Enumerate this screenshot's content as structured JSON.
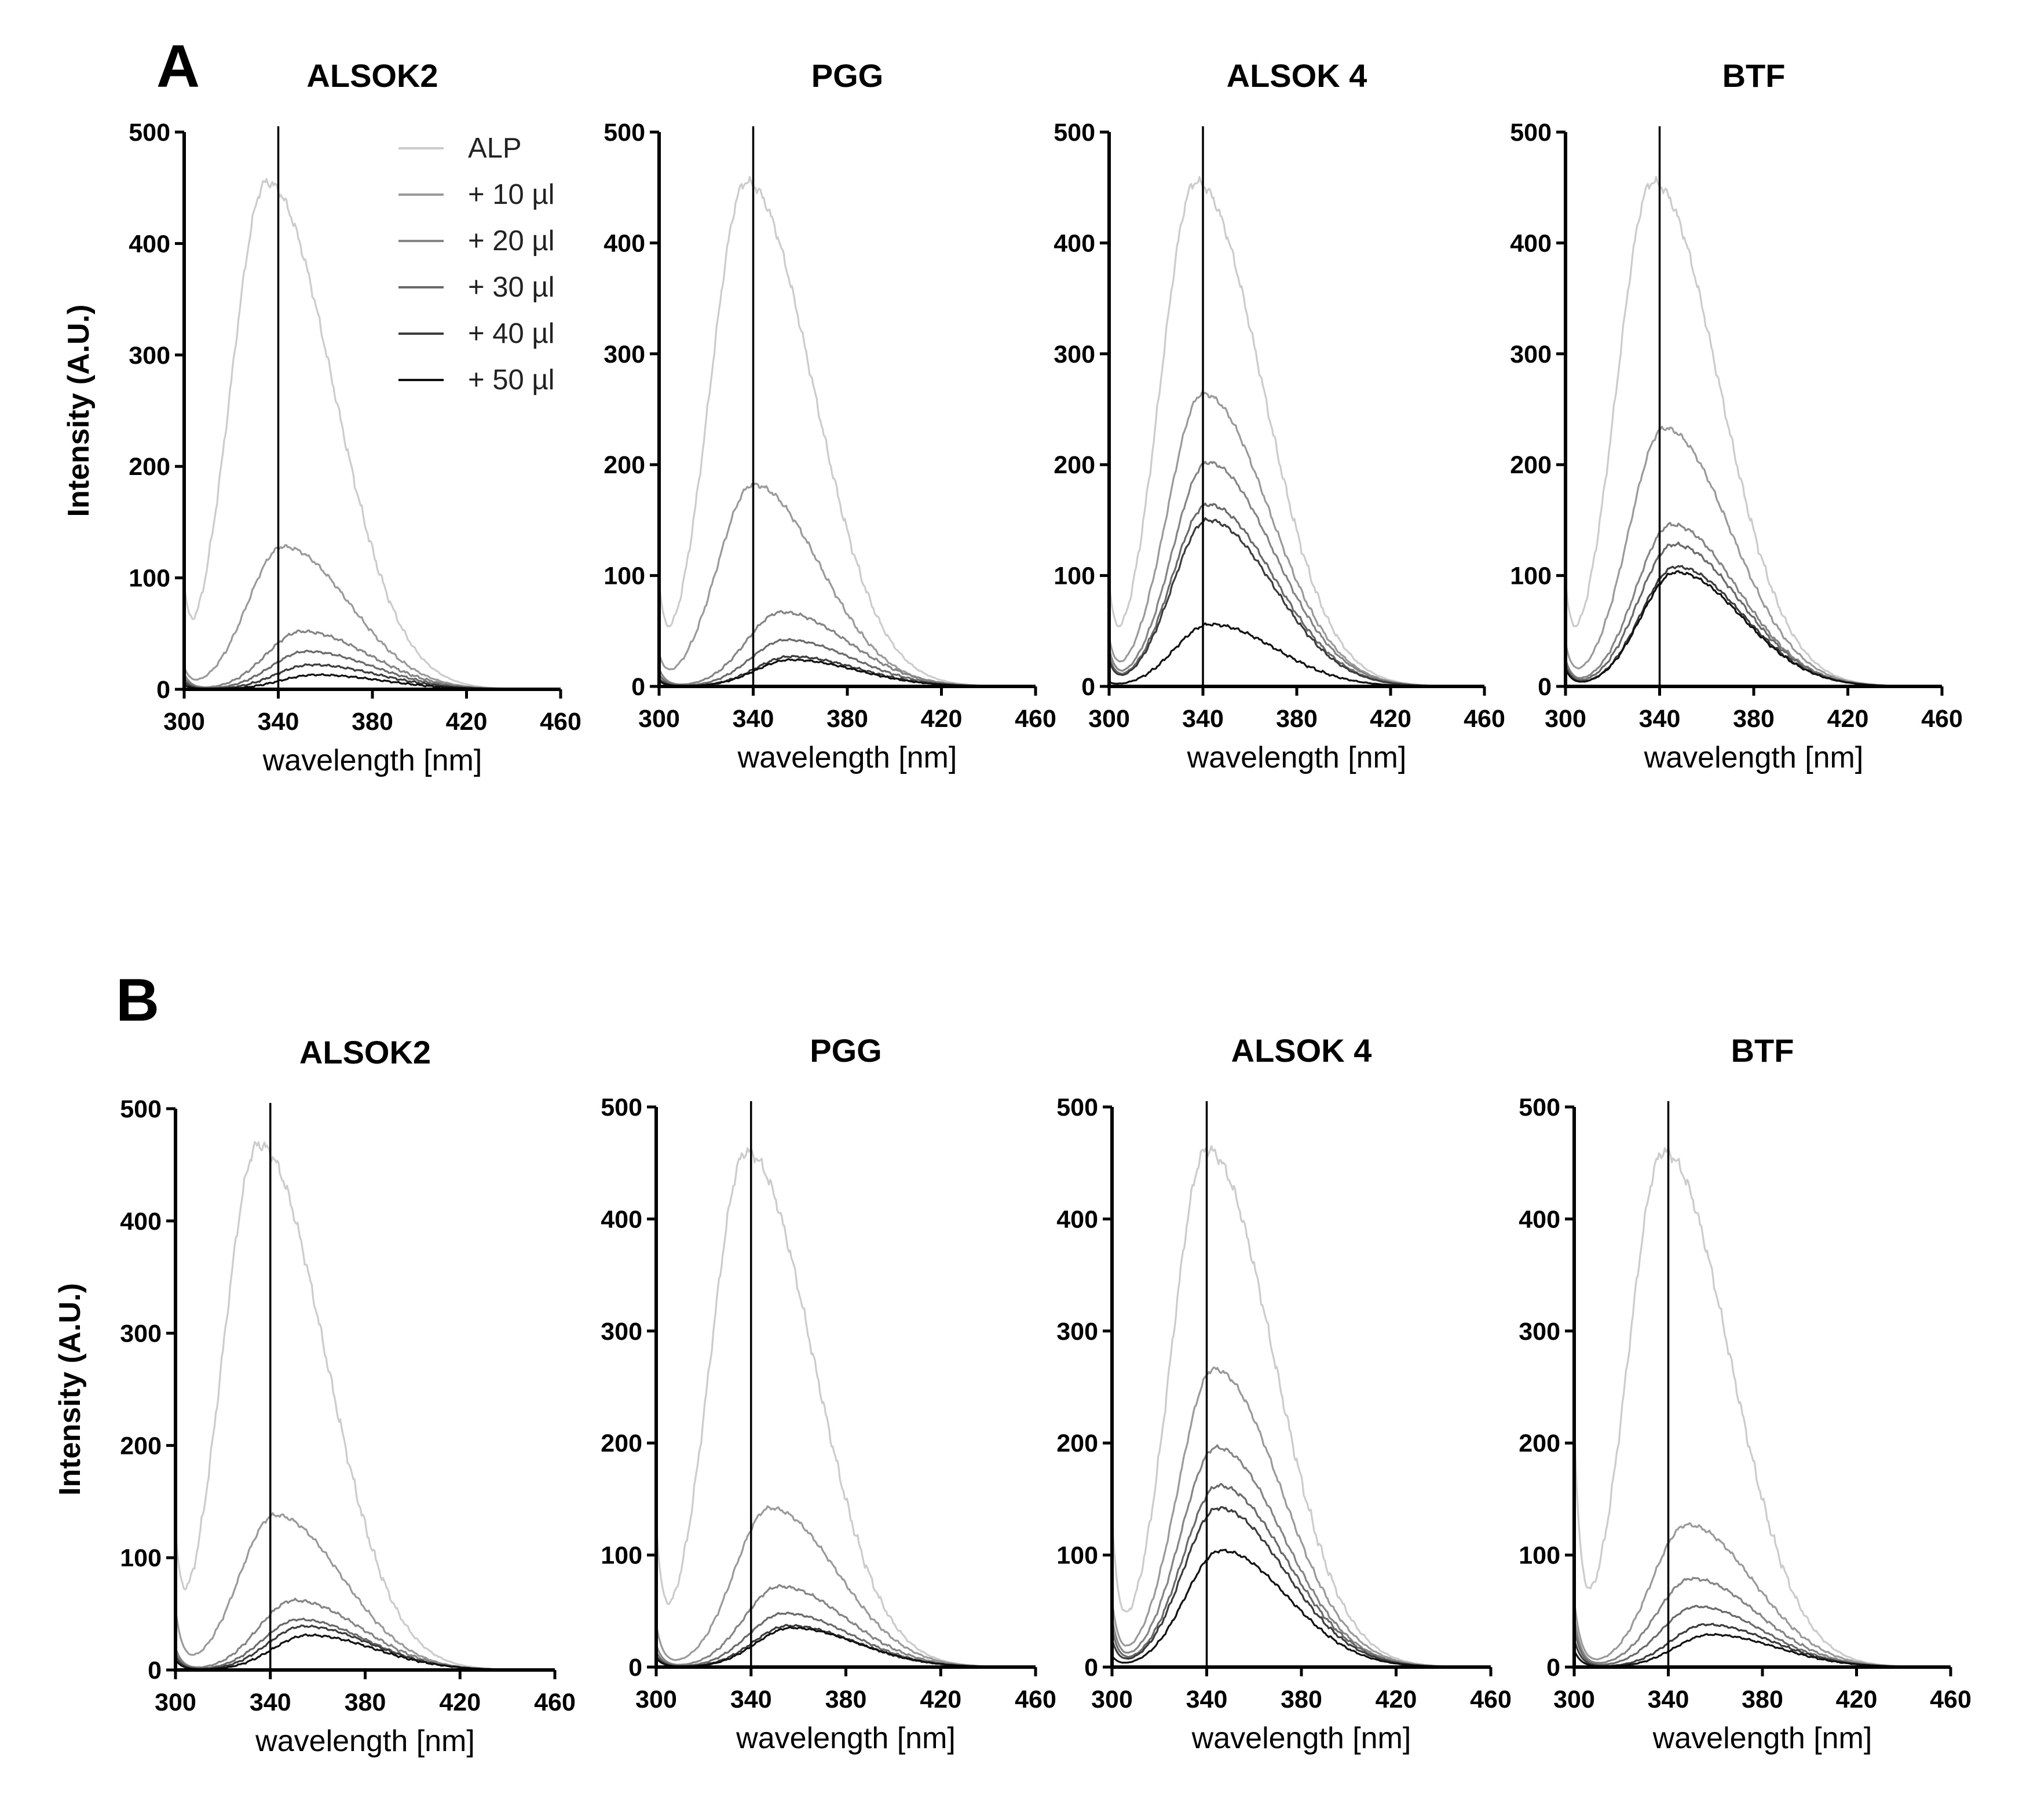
{
  "panel_labels": [
    "A",
    "B"
  ],
  "legend": {
    "entries": [
      {
        "label": "ALP",
        "color": "#cccccc"
      },
      {
        "label": "+ 10 µl",
        "color": "#9a9a9a"
      },
      {
        "label": "+ 20 µl",
        "color": "#858585"
      },
      {
        "label": "+ 30 µl",
        "color": "#6a6a6a"
      },
      {
        "label": "+ 40 µl",
        "color": "#3c3c3c"
      },
      {
        "label": "+ 50 µl",
        "color": "#111111"
      }
    ]
  },
  "chart_data": [
    {
      "id": "A1",
      "panel": "A",
      "type": "line",
      "title": "ALSOK2",
      "xlabel": "wavelength [nm]",
      "ylabel": "Intensity (A.U.)",
      "xlim": [
        300,
        460
      ],
      "ylim": [
        0,
        500
      ],
      "xticks": [
        300,
        340,
        380,
        420,
        460
      ],
      "yticks": [
        0,
        100,
        200,
        300,
        400,
        500
      ],
      "reference_x": 340,
      "grid": false,
      "legend_position": "top-right",
      "series": [
        {
          "name": "ALP",
          "peak_x": 335,
          "peak_y": 455,
          "start_y": 95,
          "noise": 5
        },
        {
          "name": "+ 10 µl",
          "peak_x": 342,
          "peak_y": 128,
          "start_y": 20,
          "noise": 2
        },
        {
          "name": "+ 20 µl",
          "peak_x": 350,
          "peak_y": 52,
          "start_y": 14,
          "noise": 1.5
        },
        {
          "name": "+ 30 µl",
          "peak_x": 352,
          "peak_y": 34,
          "start_y": 10,
          "noise": 1
        },
        {
          "name": "+ 40 µl",
          "peak_x": 354,
          "peak_y": 22,
          "start_y": 7,
          "noise": 1
        },
        {
          "name": "+ 50 µl",
          "peak_x": 356,
          "peak_y": 13,
          "start_y": 4,
          "noise": 0.8
        }
      ]
    },
    {
      "id": "A2",
      "panel": "A",
      "type": "line",
      "title": "PGG",
      "xlabel": "wavelength [nm]",
      "ylabel": "",
      "xlim": [
        300,
        460
      ],
      "ylim": [
        0,
        500
      ],
      "xticks": [
        300,
        340,
        380,
        420,
        460
      ],
      "yticks": [
        0,
        100,
        200,
        300,
        400,
        500
      ],
      "reference_x": 340,
      "grid": false,
      "series": [
        {
          "name": "ALP",
          "peak_x": 337,
          "peak_y": 455,
          "start_y": 95,
          "noise": 5
        },
        {
          "name": "+ 10 µl",
          "peak_x": 340,
          "peak_y": 182,
          "start_y": 30,
          "noise": 2.5
        },
        {
          "name": "+ 20 µl",
          "peak_x": 352,
          "peak_y": 67,
          "start_y": 16,
          "noise": 1.5
        },
        {
          "name": "+ 30 µl",
          "peak_x": 354,
          "peak_y": 42,
          "start_y": 11,
          "noise": 1
        },
        {
          "name": "+ 40 µl",
          "peak_x": 356,
          "peak_y": 27,
          "start_y": 7,
          "noise": 1
        },
        {
          "name": "+ 50 µl",
          "peak_x": 356,
          "peak_y": 24,
          "start_y": 5,
          "noise": 0.8
        }
      ]
    },
    {
      "id": "A3",
      "panel": "A",
      "type": "line",
      "title": "ALSOK 4",
      "xlabel": "wavelength [nm]",
      "ylabel": "",
      "xlim": [
        300,
        460
      ],
      "ylim": [
        0,
        500
      ],
      "xticks": [
        300,
        340,
        380,
        420,
        460
      ],
      "yticks": [
        0,
        100,
        200,
        300,
        400,
        500
      ],
      "reference_x": 340,
      "grid": false,
      "series": [
        {
          "name": "ALP",
          "peak_x": 337,
          "peak_y": 455,
          "start_y": 95,
          "noise": 5
        },
        {
          "name": "+ 10 µl",
          "peak_x": 340,
          "peak_y": 264,
          "start_y": 45,
          "noise": 2.5
        },
        {
          "name": "+ 20 µl",
          "peak_x": 342,
          "peak_y": 202,
          "start_y": 35,
          "noise": 2
        },
        {
          "name": "+ 30 µl",
          "peak_x": 342,
          "peak_y": 164,
          "start_y": 28,
          "noise": 2
        },
        {
          "name": "+ 40 µl",
          "peak_x": 342,
          "peak_y": 150,
          "start_y": 24,
          "noise": 2
        },
        {
          "name": "+ 50 µl",
          "peak_x": 343,
          "peak_y": 56,
          "start_y": 4,
          "noise": 1.5
        }
      ]
    },
    {
      "id": "A4",
      "panel": "A",
      "type": "line",
      "title": "BTF",
      "xlabel": "wavelength [nm]",
      "ylabel": "",
      "xlim": [
        300,
        460
      ],
      "ylim": [
        0,
        500
      ],
      "xticks": [
        300,
        340,
        380,
        420,
        460
      ],
      "yticks": [
        0,
        100,
        200,
        300,
        400,
        500
      ],
      "reference_x": 340,
      "grid": false,
      "series": [
        {
          "name": "ALP",
          "peak_x": 337,
          "peak_y": 455,
          "start_y": 95,
          "noise": 5
        },
        {
          "name": "+ 10 µl",
          "peak_x": 342,
          "peak_y": 233,
          "start_y": 40,
          "noise": 2.5
        },
        {
          "name": "+ 20 µl",
          "peak_x": 345,
          "peak_y": 146,
          "start_y": 25,
          "noise": 2
        },
        {
          "name": "+ 30 µl",
          "peak_x": 346,
          "peak_y": 128,
          "start_y": 22,
          "noise": 2
        },
        {
          "name": "+ 40 µl",
          "peak_x": 347,
          "peak_y": 108,
          "start_y": 18,
          "noise": 1.5
        },
        {
          "name": "+ 50 µl",
          "peak_x": 347,
          "peak_y": 103,
          "start_y": 16,
          "noise": 1.5
        }
      ]
    },
    {
      "id": "B1",
      "panel": "B",
      "type": "line",
      "title": "ALSOK2",
      "xlabel": "wavelength [nm]",
      "ylabel": "Intensity (A.U.)",
      "xlim": [
        300,
        460
      ],
      "ylim": [
        0,
        500
      ],
      "xticks": [
        300,
        340,
        380,
        420,
        460
      ],
      "yticks": [
        0,
        100,
        200,
        300,
        400,
        500
      ],
      "reference_x": 340,
      "grid": false,
      "series": [
        {
          "name": "ALP",
          "peak_x": 335,
          "peak_y": 468,
          "start_y": 125,
          "noise": 6
        },
        {
          "name": "+ 10 µl",
          "peak_x": 342,
          "peak_y": 138,
          "start_y": 55,
          "noise": 2
        },
        {
          "name": "+ 20 µl",
          "peak_x": 350,
          "peak_y": 62,
          "start_y": 20,
          "noise": 1.5
        },
        {
          "name": "+ 30 µl",
          "peak_x": 352,
          "peak_y": 45,
          "start_y": 15,
          "noise": 1
        },
        {
          "name": "+ 40 µl",
          "peak_x": 354,
          "peak_y": 39,
          "start_y": 12,
          "noise": 1
        },
        {
          "name": "+ 50 µl",
          "peak_x": 356,
          "peak_y": 31,
          "start_y": 9,
          "noise": 1
        }
      ]
    },
    {
      "id": "B2",
      "panel": "B",
      "type": "line",
      "title": "PGG",
      "xlabel": "wavelength [nm]",
      "ylabel": "",
      "xlim": [
        300,
        460
      ],
      "ylim": [
        0,
        500
      ],
      "xticks": [
        300,
        340,
        380,
        420,
        460
      ],
      "yticks": [
        0,
        100,
        200,
        300,
        400,
        500
      ],
      "reference_x": 340,
      "grid": false,
      "series": [
        {
          "name": "ALP",
          "peak_x": 338,
          "peak_y": 460,
          "start_y": 130,
          "noise": 6
        },
        {
          "name": "+ 10 µl",
          "peak_x": 348,
          "peak_y": 142,
          "start_y": 38,
          "noise": 2
        },
        {
          "name": "+ 20 µl",
          "peak_x": 352,
          "peak_y": 72,
          "start_y": 20,
          "noise": 1.5
        },
        {
          "name": "+ 30 µl",
          "peak_x": 354,
          "peak_y": 48,
          "start_y": 14,
          "noise": 1
        },
        {
          "name": "+ 40 µl",
          "peak_x": 356,
          "peak_y": 37,
          "start_y": 10,
          "noise": 1
        },
        {
          "name": "+ 50 µl",
          "peak_x": 357,
          "peak_y": 35,
          "start_y": 8,
          "noise": 0.8
        }
      ]
    },
    {
      "id": "B3",
      "panel": "B",
      "type": "line",
      "title": "ALSOK 4",
      "xlabel": "wavelength [nm]",
      "ylabel": "",
      "xlim": [
        300,
        460
      ],
      "ylim": [
        0,
        500
      ],
      "xticks": [
        300,
        340,
        380,
        420,
        460
      ],
      "yticks": [
        0,
        100,
        200,
        300,
        400,
        500
      ],
      "reference_x": 340,
      "grid": false,
      "series": [
        {
          "name": "ALP",
          "peak_x": 340,
          "peak_y": 462,
          "start_y": 135,
          "noise": 6
        },
        {
          "name": "+ 10 µl",
          "peak_x": 343,
          "peak_y": 266,
          "start_y": 60,
          "noise": 2.5
        },
        {
          "name": "+ 20 µl",
          "peak_x": 344,
          "peak_y": 196,
          "start_y": 45,
          "noise": 2
        },
        {
          "name": "+ 30 µl",
          "peak_x": 345,
          "peak_y": 162,
          "start_y": 35,
          "noise": 2
        },
        {
          "name": "+ 40 µl",
          "peak_x": 345,
          "peak_y": 142,
          "start_y": 25,
          "noise": 2
        },
        {
          "name": "+ 50 µl",
          "peak_x": 346,
          "peak_y": 104,
          "start_y": 10,
          "noise": 1.5
        }
      ]
    },
    {
      "id": "B4",
      "panel": "B",
      "type": "line",
      "title": "BTF",
      "xlabel": "wavelength [nm]",
      "ylabel": "",
      "xlim": [
        300,
        460
      ],
      "ylim": [
        0,
        500
      ],
      "xticks": [
        300,
        340,
        380,
        420,
        460
      ],
      "yticks": [
        0,
        100,
        200,
        300,
        400,
        500
      ],
      "reference_x": 340,
      "grid": false,
      "series": [
        {
          "name": "ALP",
          "peak_x": 338,
          "peak_y": 460,
          "start_y": 220,
          "noise": 6
        },
        {
          "name": "+ 10 µl",
          "peak_x": 348,
          "peak_y": 127,
          "start_y": 60,
          "noise": 2
        },
        {
          "name": "+ 20 µl",
          "peak_x": 350,
          "peak_y": 79,
          "start_y": 45,
          "noise": 1.5
        },
        {
          "name": "+ 30 µl",
          "peak_x": 352,
          "peak_y": 54,
          "start_y": 35,
          "noise": 1
        },
        {
          "name": "+ 40 µl",
          "peak_x": 356,
          "peak_y": 38,
          "start_y": 25,
          "noise": 1
        },
        {
          "name": "+ 50 µl",
          "peak_x": 358,
          "peak_y": 29,
          "start_y": 15,
          "noise": 0.8
        }
      ]
    }
  ]
}
